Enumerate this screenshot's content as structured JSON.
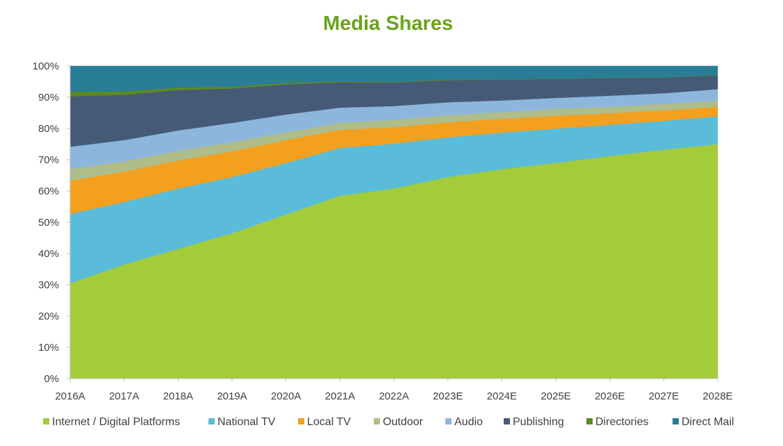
{
  "colors": {
    "title": "#6aa21d",
    "axis": "#bfbfbf",
    "text": "#404040"
  },
  "chart_data": {
    "type": "area",
    "stacked": true,
    "normalized": true,
    "title": "Media Shares",
    "xlabel": "",
    "ylabel": "",
    "ylim": [
      0,
      100
    ],
    "y_ticks": [
      "0%",
      "10%",
      "20%",
      "30%",
      "40%",
      "50%",
      "60%",
      "70%",
      "80%",
      "90%",
      "100%"
    ],
    "grid": false,
    "legend_position": "bottom",
    "categories": [
      "2016A",
      "2017A",
      "2018A",
      "2019A",
      "2020A",
      "2021A",
      "2022A",
      "2023E",
      "2024E",
      "2025E",
      "2026E",
      "2027E",
      "2028E"
    ],
    "series": [
      {
        "name": "Internet / Digital Platforms",
        "color": "#a4cc3a",
        "values": [
          30.5,
          36.5,
          41.5,
          46.5,
          52.5,
          58.5,
          60.8,
          64.5,
          67.0,
          69.0,
          71.2,
          73.2,
          75.0
        ]
      },
      {
        "name": "National TV",
        "color": "#5bbcd9",
        "values": [
          22.2,
          20.0,
          19.3,
          18.0,
          16.5,
          15.3,
          14.4,
          12.7,
          11.7,
          11.0,
          10.0,
          9.3,
          8.9
        ]
      },
      {
        "name": "Local TV",
        "color": "#f3a01f",
        "values": [
          10.6,
          9.7,
          9.0,
          8.2,
          7.3,
          5.8,
          5.2,
          4.8,
          4.4,
          4.1,
          3.7,
          3.3,
          3.0
        ]
      },
      {
        "name": "Outdoor",
        "color": "#aebd8a",
        "values": [
          3.8,
          3.3,
          3.1,
          3.0,
          2.5,
          2.3,
          2.4,
          2.3,
          2.2,
          2.2,
          2.1,
          2.1,
          2.1
        ]
      },
      {
        "name": "Audio",
        "color": "#8db6dd",
        "values": [
          7.1,
          6.8,
          6.5,
          6.1,
          5.7,
          4.8,
          4.4,
          4.1,
          3.7,
          3.5,
          3.5,
          3.4,
          3.6
        ]
      },
      {
        "name": "Publishing",
        "color": "#455a76",
        "values": [
          16.1,
          14.5,
          12.9,
          11.0,
          9.6,
          8.1,
          7.5,
          7.1,
          6.6,
          6.1,
          5.6,
          5.0,
          4.4
        ]
      },
      {
        "name": "Directories",
        "color": "#5c8a22",
        "values": [
          1.5,
          1.1,
          0.8,
          0.6,
          0.5,
          0.3,
          0.2,
          0.2,
          0.1,
          0.1,
          0.1,
          0.1,
          0.1
        ]
      },
      {
        "name": "Direct Mail",
        "color": "#2a7d96",
        "values": [
          8.2,
          8.1,
          6.9,
          6.6,
          5.4,
          4.9,
          5.1,
          4.3,
          4.3,
          4.0,
          3.8,
          3.6,
          2.9
        ]
      }
    ]
  }
}
